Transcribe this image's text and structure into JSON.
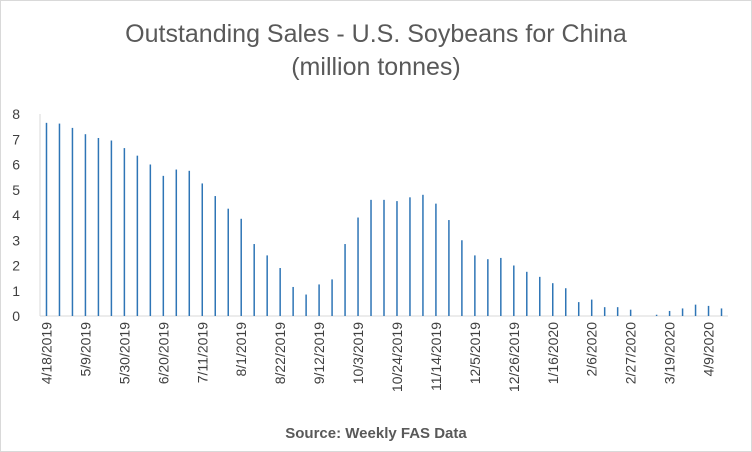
{
  "chart_data": {
    "type": "bar",
    "title": "Outstanding Sales - U.S. Soybeans for China",
    "subtitle": "(million tonnes)",
    "source": "Source: Weekly FAS Data",
    "colors": {
      "bar": "#2e75b6",
      "axis": "#d9d9d9",
      "text": "#595959"
    },
    "grid": false,
    "legend": "none",
    "ylim": [
      0,
      8
    ],
    "yticks": [
      0,
      1,
      2,
      3,
      4,
      5,
      6,
      7,
      8
    ],
    "categories": [
      "4/18/2019",
      "4/25/2019",
      "5/2/2019",
      "5/9/2019",
      "5/16/2019",
      "5/23/2019",
      "5/30/2019",
      "6/6/2019",
      "6/13/2019",
      "6/20/2019",
      "6/27/2019",
      "7/4/2019",
      "7/11/2019",
      "7/18/2019",
      "7/25/2019",
      "8/1/2019",
      "8/8/2019",
      "8/15/2019",
      "8/22/2019",
      "8/29/2019",
      "9/5/2019",
      "9/12/2019",
      "9/19/2019",
      "9/26/2019",
      "10/3/2019",
      "10/10/2019",
      "10/17/2019",
      "10/24/2019",
      "10/31/2019",
      "11/7/2019",
      "11/14/2019",
      "11/21/2019",
      "11/28/2019",
      "12/5/2019",
      "12/12/2019",
      "12/19/2019",
      "12/26/2019",
      "1/2/2020",
      "1/9/2020",
      "1/16/2020",
      "1/23/2020",
      "1/30/2020",
      "2/6/2020",
      "2/13/2020",
      "2/20/2020",
      "2/27/2020",
      "3/5/2020",
      "3/12/2020",
      "3/19/2020",
      "3/26/2020",
      "4/2/2020",
      "4/9/2020",
      "4/16/2020"
    ],
    "tick_labels": [
      "4/18/2019",
      "5/9/2019",
      "5/30/2019",
      "6/20/2019",
      "7/11/2019",
      "8/1/2019",
      "8/22/2019",
      "9/12/2019",
      "10/3/2019",
      "10/24/2019",
      "11/14/2019",
      "12/5/2019",
      "12/26/2019",
      "1/16/2020",
      "2/6/2020",
      "2/27/2020",
      "3/19/2020",
      "4/9/2020"
    ],
    "values": [
      7.65,
      7.62,
      7.45,
      7.2,
      7.05,
      6.95,
      6.65,
      6.35,
      6.0,
      5.55,
      5.8,
      5.75,
      5.25,
      4.75,
      4.25,
      3.85,
      2.85,
      2.4,
      1.9,
      1.15,
      0.85,
      1.25,
      1.45,
      2.85,
      3.9,
      4.6,
      4.6,
      4.55,
      4.7,
      4.8,
      4.45,
      3.8,
      3.0,
      2.4,
      2.25,
      2.3,
      2.0,
      1.75,
      1.55,
      1.3,
      1.1,
      0.55,
      0.65,
      0.35,
      0.35,
      0.25,
      0.0,
      0.05,
      0.2,
      0.3,
      0.45,
      0.4,
      0.3
    ]
  }
}
